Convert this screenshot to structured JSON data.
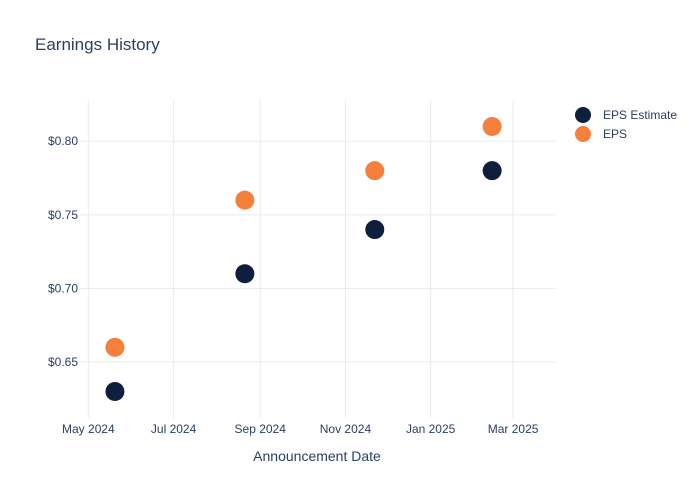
{
  "chart_data": {
    "type": "scatter",
    "title": "Earnings History",
    "xlabel": "Announcement Date",
    "ylabel": "",
    "x_axis_type": "date",
    "xlim": [
      "2024-04-25",
      "2025-03-31"
    ],
    "ylim": [
      0.612,
      0.828
    ],
    "x_ticks": [
      {
        "date": "2024-05-01",
        "label": "May 2024"
      },
      {
        "date": "2024-07-01",
        "label": "Jul 2024"
      },
      {
        "date": "2024-09-01",
        "label": "Sep 2024"
      },
      {
        "date": "2024-11-01",
        "label": "Nov 2024"
      },
      {
        "date": "2025-01-01",
        "label": "Jan 2025"
      },
      {
        "date": "2025-03-01",
        "label": "Mar 2025"
      }
    ],
    "y_ticks": [
      {
        "value": 0.65,
        "label": "$0.65"
      },
      {
        "value": 0.7,
        "label": "$0.70"
      },
      {
        "value": 0.75,
        "label": "$0.75"
      },
      {
        "value": 0.8,
        "label": "$0.80"
      }
    ],
    "grid": true,
    "legend_position": "top-right",
    "series": [
      {
        "name": "EPS Estimate",
        "color": "#0d1f3c",
        "points": [
          {
            "x": "2024-05-20",
            "y": 0.63
          },
          {
            "x": "2024-08-21",
            "y": 0.71
          },
          {
            "x": "2024-11-22",
            "y": 0.74
          },
          {
            "x": "2025-02-14",
            "y": 0.78
          }
        ]
      },
      {
        "name": "EPS",
        "color": "#f57f3b",
        "points": [
          {
            "x": "2024-05-20",
            "y": 0.66
          },
          {
            "x": "2024-08-21",
            "y": 0.76
          },
          {
            "x": "2024-11-22",
            "y": 0.78
          },
          {
            "x": "2025-02-14",
            "y": 0.81
          }
        ]
      }
    ]
  }
}
